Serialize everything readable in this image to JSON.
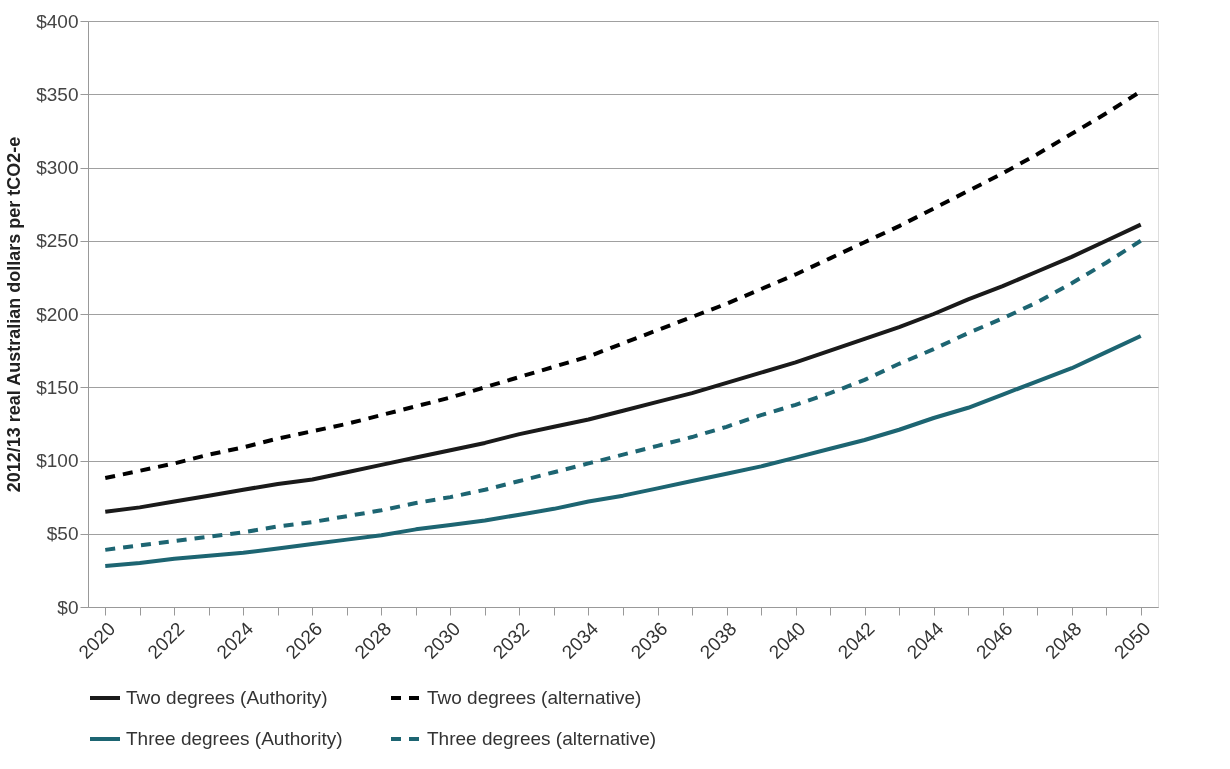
{
  "chart_data": {
    "type": "line",
    "ylabel": "2012/13 real Australian dollars per tCO2-e",
    "categories": [
      "2020",
      null,
      "2022",
      null,
      "2024",
      null,
      "2026",
      null,
      "2028",
      null,
      "2030",
      null,
      "2032",
      null,
      "2034",
      null,
      "2036",
      null,
      "2038",
      null,
      "2040",
      null,
      "2042",
      null,
      "2044",
      null,
      "2046",
      null,
      "2048",
      null,
      "2050"
    ],
    "series": [
      {
        "name": "Two degrees (Authority)",
        "color": "#1a1a1a",
        "line_style": "solid",
        "values": [
          65,
          68,
          72,
          76,
          80,
          84,
          87,
          92,
          97,
          102,
          107,
          112,
          118,
          123,
          128,
          134,
          140,
          146,
          153,
          160,
          167,
          175,
          183,
          191,
          200,
          210,
          219,
          229,
          239,
          250,
          261
        ]
      },
      {
        "name": "Two degrees (alternative)",
        "color": "#000000",
        "line_style": "dashed",
        "values": [
          88,
          93,
          98,
          104,
          109,
          115,
          120,
          125,
          131,
          137,
          143,
          150,
          157,
          164,
          171,
          180,
          189,
          198,
          207,
          217,
          227,
          238,
          249,
          260,
          272,
          284,
          296,
          309,
          323,
          337,
          352
        ]
      },
      {
        "name": "Three degrees (Authority)",
        "color": "#1d6572",
        "line_style": "solid",
        "values": [
          28,
          30,
          33,
          35,
          37,
          40,
          43,
          46,
          49,
          53,
          56,
          59,
          63,
          67,
          72,
          76,
          81,
          86,
          91,
          96,
          102,
          108,
          114,
          121,
          129,
          136,
          145,
          154,
          163,
          174,
          185
        ]
      },
      {
        "name": "Three degrees (alternative)",
        "color": "#1d6572",
        "line_style": "dashed",
        "values": [
          39,
          42,
          45,
          48,
          51,
          55,
          58,
          62,
          66,
          71,
          75,
          80,
          86,
          92,
          98,
          104,
          110,
          116,
          123,
          131,
          138,
          146,
          155,
          166,
          176,
          187,
          197,
          208,
          221,
          235,
          250
        ]
      }
    ],
    "ylim": [
      0,
      400
    ],
    "yticks": [
      {
        "value": 0,
        "label": "$0"
      },
      {
        "value": 50,
        "label": "$50"
      },
      {
        "value": 100,
        "label": "$100"
      },
      {
        "value": 150,
        "label": "$150"
      },
      {
        "value": 200,
        "label": "$200"
      },
      {
        "value": 250,
        "label": "$250"
      },
      {
        "value": 300,
        "label": "$300"
      },
      {
        "value": 350,
        "label": "$350"
      },
      {
        "value": 400,
        "label": "$400"
      }
    ],
    "grid": "y",
    "legend": "bottom"
  }
}
